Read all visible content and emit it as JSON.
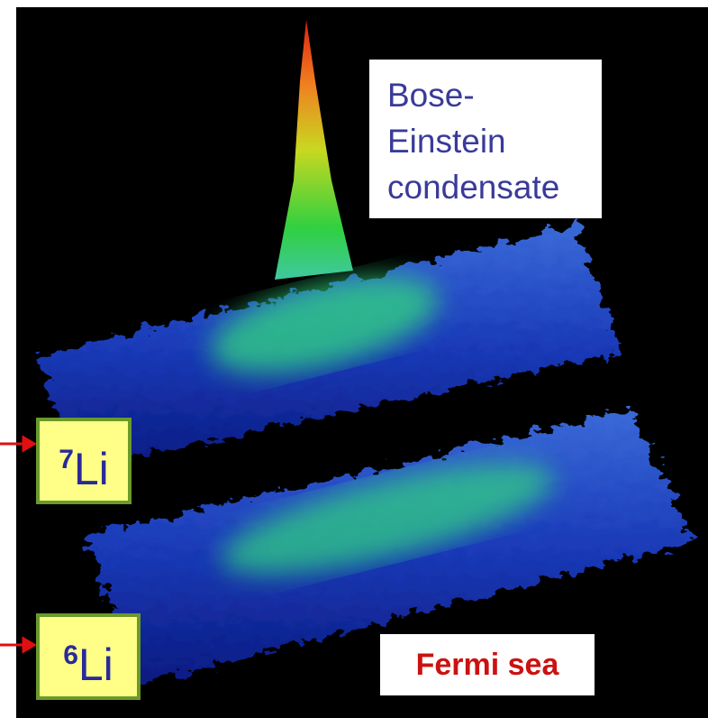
{
  "labels": {
    "bec": [
      "Bose-",
      "Einstein",
      "condensate"
    ],
    "li7": {
      "mass": "7",
      "symbol": "Li"
    },
    "li6": {
      "mass": "6",
      "symbol": "Li"
    },
    "fermi": "Fermi sea"
  }
}
